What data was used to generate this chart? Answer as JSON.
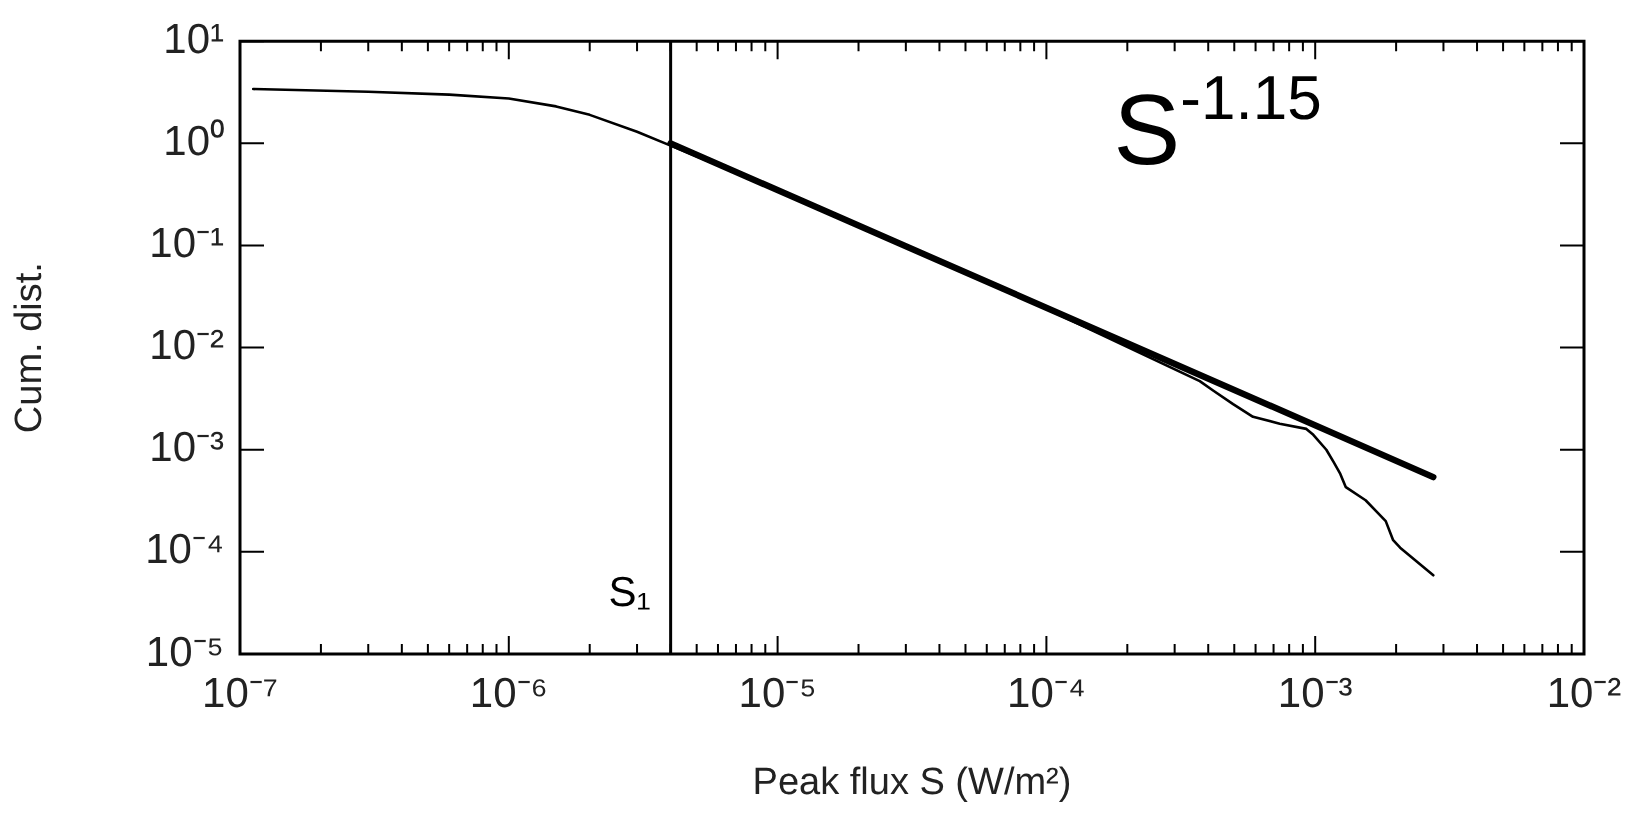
{
  "chart_data": {
    "type": "line",
    "xlabel": "Peak flux S (W/m²)",
    "ylabel": "Cum. dist.",
    "log": "xy",
    "grid": false,
    "legend": false,
    "marker": "none",
    "xlim": [
      1e-07,
      0.01
    ],
    "ylim": [
      1e-05,
      10
    ],
    "xticks": [
      {
        "value": 1e-07,
        "label": "10⁻⁷"
      },
      {
        "value": 2e-07,
        "label": null
      },
      {
        "value": 3e-07,
        "label": null
      },
      {
        "value": 4e-07,
        "label": null
      },
      {
        "value": 5e-07,
        "label": null
      },
      {
        "value": 6e-07,
        "label": null
      },
      {
        "value": 7e-07,
        "label": null
      },
      {
        "value": 8e-07,
        "label": null
      },
      {
        "value": 9e-07,
        "label": null
      },
      {
        "value": 1e-06,
        "label": "10⁻⁶"
      },
      {
        "value": 2e-06,
        "label": null
      },
      {
        "value": 3e-06,
        "label": null
      },
      {
        "value": 4e-06,
        "label": null
      },
      {
        "value": 5e-06,
        "label": null
      },
      {
        "value": 6e-06,
        "label": null
      },
      {
        "value": 7e-06,
        "label": null
      },
      {
        "value": 8e-06,
        "label": null
      },
      {
        "value": 9e-06,
        "label": null
      },
      {
        "value": 1e-05,
        "label": "10⁻⁵"
      },
      {
        "value": 2e-05,
        "label": null
      },
      {
        "value": 3e-05,
        "label": null
      },
      {
        "value": 4e-05,
        "label": null
      },
      {
        "value": 5e-05,
        "label": null
      },
      {
        "value": 6e-05,
        "label": null
      },
      {
        "value": 7e-05,
        "label": null
      },
      {
        "value": 8e-05,
        "label": null
      },
      {
        "value": 9e-05,
        "label": null
      },
      {
        "value": 0.0001,
        "label": "10⁻⁴"
      },
      {
        "value": 0.0002,
        "label": null
      },
      {
        "value": 0.0003,
        "label": null
      },
      {
        "value": 0.0004,
        "label": null
      },
      {
        "value": 0.0005,
        "label": null
      },
      {
        "value": 0.0006,
        "label": null
      },
      {
        "value": 0.0007,
        "label": null
      },
      {
        "value": 0.0008,
        "label": null
      },
      {
        "value": 0.0009,
        "label": null
      },
      {
        "value": 0.001,
        "label": "10⁻³"
      },
      {
        "value": 0.002,
        "label": null
      },
      {
        "value": 0.003,
        "label": null
      },
      {
        "value": 0.004,
        "label": null
      },
      {
        "value": 0.005,
        "label": null
      },
      {
        "value": 0.006,
        "label": null
      },
      {
        "value": 0.007,
        "label": null
      },
      {
        "value": 0.008,
        "label": null
      },
      {
        "value": 0.009,
        "label": null
      },
      {
        "value": 0.01,
        "label": "10⁻²"
      }
    ],
    "yticks": [
      {
        "value": 1e-05,
        "label": "10⁻⁵"
      },
      {
        "value": 0.0001,
        "label": "10⁻⁴"
      },
      {
        "value": 0.001,
        "label": "10⁻³"
      },
      {
        "value": 0.01,
        "label": "10⁻²"
      },
      {
        "value": 0.1,
        "label": "10⁻¹"
      },
      {
        "value": 1,
        "label": "10⁰"
      },
      {
        "value": 10,
        "label": "10¹"
      }
    ],
    "annotations": [
      "S$^{-1.15}$"
    ],
    "ref_lines": [
      {
        "axis": "x",
        "value": 4e-06,
        "label": "S₁",
        "color": "#000000"
      }
    ],
    "series": [
      {
        "color": "#000000",
        "x": [
          1.12e-07,
          3e-07,
          6e-07,
          1e-06,
          1.5e-06,
          2e-06,
          3e-06,
          4e-06,
          1e-05,
          3e-05,
          0.0001,
          0.000372,
          0.000417,
          0.000495,
          0.000587,
          0.000738,
          0.000927,
          0.000984,
          0.0011,
          0.00117,
          0.00124,
          0.0013,
          0.00154,
          0.00183,
          0.00195,
          0.00207,
          0.00275
        ],
        "values": [
          3.4,
          3.2,
          3.0,
          2.75,
          2.3,
          1.9,
          1.3,
          0.95,
          0.35,
          0.099,
          0.024,
          0.0047,
          0.0038,
          0.0028,
          0.0021,
          0.0018,
          0.0016,
          0.0014,
          0.001,
          0.00076,
          0.00058,
          0.00043,
          0.00032,
          0.0002,
          0.00013,
          0.00011,
          5.9e-05
        ]
      },
      {
        "color": "#000000",
        "x": [
          4e-06,
          0.00275
        ],
        "values": [
          1,
          0.00054
        ]
      }
    ]
  }
}
